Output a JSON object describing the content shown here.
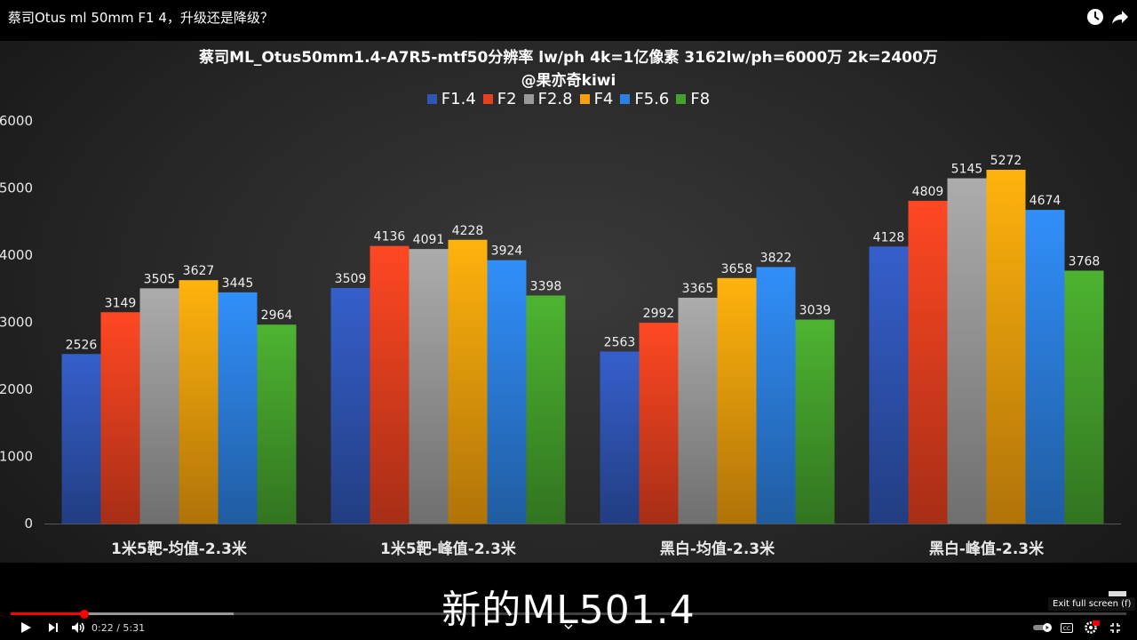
{
  "video": {
    "title": "蔡司Otus ml 50mm F1 4，升级还是降级？",
    "caption": "新的ML501.4",
    "time_display": "0:22 / 5:31",
    "progress": 0.066,
    "buffered": 0.2,
    "tooltip": "Exit full screen (f)"
  },
  "icons": {
    "watch_later": "clock-icon",
    "share": "share-arrow-icon",
    "play": "play-icon",
    "next": "next-icon",
    "volume": "volume-icon",
    "chapters": "chevron-down-icon",
    "autoplay": "autoplay-toggle-icon",
    "captions": "cc-icon",
    "settings": "gear-icon",
    "fullscreen": "exit-fullscreen-icon"
  },
  "chart_data": {
    "type": "bar",
    "title": "蔡司ML_Otus50mm1.4-A7R5-mtf50分辨率 lw/ph 4k=1亿像素 3162lw/ph=6000万 2k=2400万",
    "subtitle": "@果亦奇kiwi",
    "categories": [
      "1米5靶-均值-2.3米",
      "1米5靶-峰值-2.3米",
      "黑白-均值-2.3米",
      "黑白-峰值-2.3米"
    ],
    "series": [
      {
        "name": "F1.4",
        "color": "#2f55b5",
        "values": [
          2526,
          3509,
          2563,
          4128
        ]
      },
      {
        "name": "F2",
        "color": "#e8401f",
        "values": [
          3149,
          4136,
          2992,
          4809
        ]
      },
      {
        "name": "F2.8",
        "color": "#9a9a9a",
        "values": [
          3505,
          4091,
          3365,
          5145
        ]
      },
      {
        "name": "F4",
        "color": "#f5a00c",
        "values": [
          3627,
          4228,
          3658,
          5272
        ]
      },
      {
        "name": "F5.6",
        "color": "#2c80df",
        "values": [
          3445,
          3924,
          3822,
          4674
        ]
      },
      {
        "name": "F8",
        "color": "#45a12c",
        "values": [
          2964,
          3398,
          3039,
          3768
        ]
      }
    ],
    "yticks": [
      0,
      1000,
      2000,
      3000,
      4000,
      5000,
      6000
    ],
    "ylim": [
      0,
      6000
    ],
    "legend": "top",
    "grid": false
  }
}
